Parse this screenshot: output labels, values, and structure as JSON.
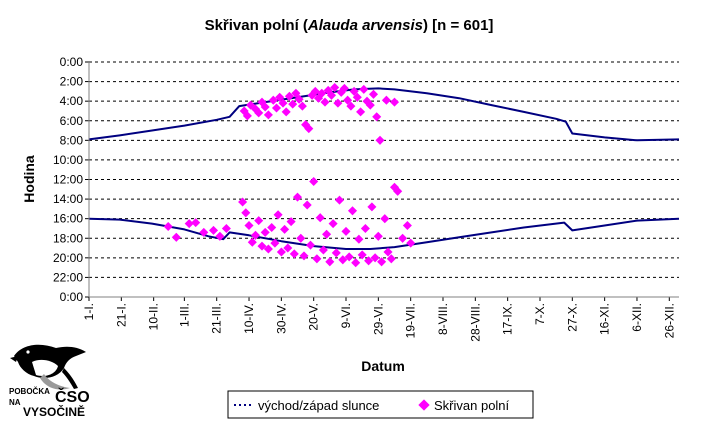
{
  "chart_data": {
    "type": "scatter",
    "title": {
      "prefix": "Skřivan polní (",
      "italic": "Alauda arvensis",
      "suffix": ") [n = 601]"
    },
    "xlabel": "Datum",
    "ylabel": "Hodina",
    "x_tick_labels": [
      "1-I.",
      "21-I.",
      "10-II.",
      "1-III.",
      "21-III.",
      "10-IV.",
      "30-IV.",
      "20-V.",
      "9-VI.",
      "29-VI.",
      "19-VII.",
      "8-VIII.",
      "28-VIII.",
      "17-IX.",
      "7-X.",
      "27-X.",
      "16-XI.",
      "6-XII.",
      "26-XII."
    ],
    "x_tick_day_of_year": [
      1,
      21,
      41,
      60,
      80,
      100,
      120,
      140,
      160,
      180,
      200,
      220,
      240,
      260,
      280,
      300,
      320,
      340,
      360
    ],
    "xlim": [
      1,
      366
    ],
    "y_tick_labels": [
      "0:00",
      "2:00",
      "4:00",
      "6:00",
      "8:00",
      "10:00",
      "12:00",
      "14:00",
      "16:00",
      "18:00",
      "20:00",
      "22:00",
      "0:00"
    ],
    "y_tick_hours": [
      24,
      22,
      20,
      18,
      16,
      14,
      12,
      10,
      8,
      6,
      4,
      2,
      0
    ],
    "ylim": [
      0,
      24
    ],
    "y_inverted": false,
    "gridlines": "horizontal dashed",
    "legend_position": "bottom",
    "series": [
      {
        "name": "východ/západ slunce",
        "kind": "line",
        "color": "#000080",
        "sunrise": [
          [
            1,
            8.0
          ],
          [
            20,
            7.9
          ],
          [
            40,
            7.5
          ],
          [
            60,
            6.9
          ],
          [
            75,
            6.2
          ],
          [
            84,
            5.9
          ],
          [
            88,
            6.6
          ],
          [
            100,
            6.3
          ],
          [
            120,
            5.7
          ],
          [
            140,
            5.2
          ],
          [
            160,
            4.9
          ],
          [
            175,
            4.9
          ],
          [
            190,
            5.1
          ],
          [
            210,
            5.6
          ],
          [
            230,
            6.1
          ],
          [
            250,
            6.6
          ],
          [
            270,
            7.1
          ],
          [
            295,
            7.6
          ],
          [
            300,
            6.8
          ],
          [
            320,
            7.3
          ],
          [
            340,
            7.8
          ],
          [
            366,
            8.0
          ]
        ],
        "sunset": [
          [
            1,
            16.1
          ],
          [
            20,
            16.5
          ],
          [
            40,
            17.0
          ],
          [
            60,
            17.5
          ],
          [
            80,
            18.1
          ],
          [
            88,
            18.4
          ],
          [
            94,
            19.5
          ],
          [
            110,
            19.9
          ],
          [
            130,
            20.4
          ],
          [
            150,
            20.9
          ],
          [
            165,
            21.2
          ],
          [
            180,
            21.3
          ],
          [
            190,
            21.2
          ],
          [
            210,
            20.8
          ],
          [
            230,
            20.3
          ],
          [
            250,
            19.6
          ],
          [
            270,
            18.9
          ],
          [
            290,
            18.2
          ],
          [
            296,
            17.9
          ],
          [
            300,
            16.7
          ],
          [
            320,
            16.3
          ],
          [
            340,
            16.0
          ],
          [
            366,
            16.1
          ]
        ]
      },
      {
        "name": "Skřivan polní",
        "kind": "scatter",
        "color": "#ff00ff",
        "n_points": 601,
        "points": [
          [
            50,
            7.2
          ],
          [
            55,
            6.1
          ],
          [
            63,
            7.5
          ],
          [
            67,
            7.6
          ],
          [
            72,
            6.6
          ],
          [
            78,
            6.8
          ],
          [
            82,
            6.2
          ],
          [
            86,
            7.0
          ],
          [
            97,
            19.0
          ],
          [
            99,
            18.5
          ],
          [
            101,
            19.6
          ],
          [
            104,
            19.2
          ],
          [
            106,
            18.8
          ],
          [
            108,
            19.9
          ],
          [
            110,
            19.4
          ],
          [
            112,
            18.6
          ],
          [
            115,
            20.1
          ],
          [
            117,
            19.3
          ],
          [
            119,
            20.4
          ],
          [
            121,
            19.8
          ],
          [
            123,
            18.9
          ],
          [
            125,
            20.5
          ],
          [
            127,
            19.7
          ],
          [
            129,
            20.8
          ],
          [
            131,
            20.2
          ],
          [
            133,
            19.5
          ],
          [
            135,
            17.6
          ],
          [
            137,
            17.2
          ],
          [
            139,
            20.6
          ],
          [
            141,
            21.0
          ],
          [
            143,
            20.3
          ],
          [
            145,
            20.8
          ],
          [
            147,
            19.9
          ],
          [
            149,
            21.1
          ],
          [
            151,
            20.6
          ],
          [
            153,
            21.4
          ],
          [
            155,
            19.8
          ],
          [
            157,
            20.9
          ],
          [
            159,
            21.3
          ],
          [
            161,
            20.1
          ],
          [
            163,
            19.5
          ],
          [
            165,
            21.0
          ],
          [
            167,
            20.4
          ],
          [
            169,
            18.9
          ],
          [
            171,
            21.2
          ],
          [
            173,
            20.0
          ],
          [
            175,
            19.6
          ],
          [
            177,
            20.7
          ],
          [
            179,
            18.4
          ],
          [
            181,
            16.0
          ],
          [
            185,
            20.1
          ],
          [
            190,
            19.9
          ],
          [
            96,
            9.7
          ],
          [
            98,
            8.6
          ],
          [
            100,
            7.3
          ],
          [
            102,
            5.6
          ],
          [
            104,
            6.3
          ],
          [
            106,
            7.8
          ],
          [
            108,
            5.2
          ],
          [
            110,
            6.6
          ],
          [
            112,
            4.9
          ],
          [
            114,
            7.1
          ],
          [
            116,
            5.5
          ],
          [
            118,
            8.4
          ],
          [
            120,
            4.6
          ],
          [
            122,
            6.9
          ],
          [
            124,
            5.0
          ],
          [
            126,
            7.7
          ],
          [
            128,
            4.4
          ],
          [
            130,
            10.2
          ],
          [
            132,
            6.0
          ],
          [
            134,
            4.2
          ],
          [
            136,
            9.4
          ],
          [
            138,
            5.3
          ],
          [
            140,
            11.8
          ],
          [
            142,
            3.9
          ],
          [
            144,
            8.1
          ],
          [
            146,
            4.8
          ],
          [
            148,
            6.4
          ],
          [
            150,
            3.6
          ],
          [
            152,
            7.5
          ],
          [
            154,
            4.5
          ],
          [
            156,
            9.9
          ],
          [
            158,
            3.8
          ],
          [
            160,
            6.7
          ],
          [
            162,
            4.1
          ],
          [
            164,
            8.8
          ],
          [
            166,
            3.5
          ],
          [
            168,
            5.9
          ],
          [
            170,
            4.3
          ],
          [
            172,
            7.0
          ],
          [
            174,
            3.7
          ],
          [
            176,
            9.2
          ],
          [
            178,
            4.0
          ],
          [
            180,
            6.2
          ],
          [
            182,
            3.6
          ],
          [
            184,
            8.0
          ],
          [
            186,
            4.6
          ],
          [
            188,
            3.9
          ],
          [
            190,
            11.2
          ],
          [
            192,
            10.8
          ],
          [
            195,
            6.0
          ],
          [
            198,
            7.3
          ],
          [
            200,
            5.5
          ]
        ]
      }
    ]
  },
  "logo": {
    "line1": "POBOČKA",
    "line2": "NA",
    "big": "ČSO",
    "line3": "VYSOČINĚ"
  }
}
